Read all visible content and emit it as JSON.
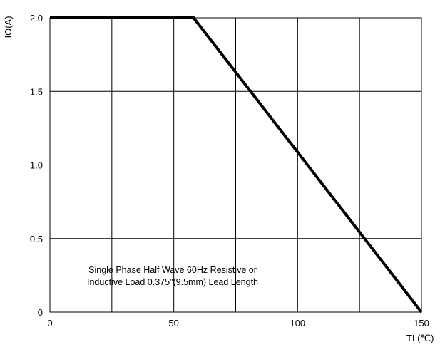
{
  "chart_data": {
    "type": "line",
    "title": "",
    "xlabel": "TL(℃)",
    "ylabel": "IO(A)",
    "xlim": [
      0,
      150
    ],
    "ylim": [
      0,
      2.0
    ],
    "x_ticks": [
      "0",
      "50",
      "100",
      "150"
    ],
    "y_ticks": [
      "0",
      "0.5",
      "1.0",
      "1.5",
      "2.0"
    ],
    "grid": true,
    "series": [
      {
        "x": [
          0,
          58,
          150
        ],
        "y": [
          2.0,
          2.0,
          0
        ]
      }
    ],
    "annotation": [
      "Single Phase Half Wave 60Hz Resistive or",
      "Inductive Load 0.375\"(9.5mm) Lead Length"
    ]
  }
}
